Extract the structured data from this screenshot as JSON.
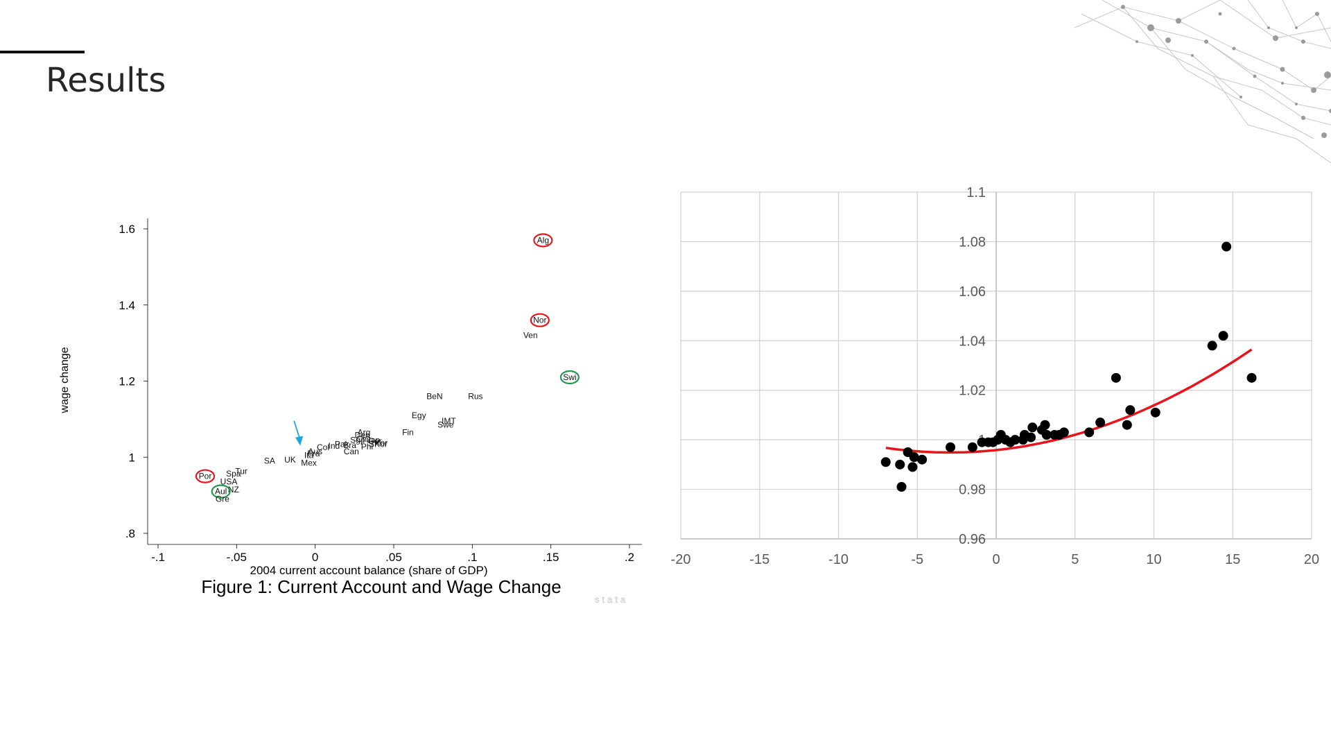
{
  "slide": {
    "title": "Results"
  },
  "chart_data": [
    {
      "type": "scatter",
      "title": "",
      "caption": "Figure 1: Current Account and Wage Change",
      "xlabel": "2004 current account balance (share of GDP)",
      "ylabel": "wage change",
      "watermark": "stata",
      "xlim": [
        -0.1,
        0.2
      ],
      "ylim": [
        0.8,
        1.6
      ],
      "xticks": [
        "-.1",
        "-.05",
        "0",
        ".05",
        ".1",
        ".15",
        ".2"
      ],
      "xtick_values": [
        -0.1,
        -0.05,
        0,
        0.05,
        0.1,
        0.15,
        0.2
      ],
      "yticks": [
        ".8",
        "1",
        "1.2",
        "1.4",
        "1.6"
      ],
      "ytick_values": [
        0.8,
        1.0,
        1.2,
        1.4,
        1.6
      ],
      "grid": false,
      "points": [
        {
          "label": "Alg",
          "x": 0.145,
          "y": 1.57,
          "highlight": "red"
        },
        {
          "label": "Nor",
          "x": 0.143,
          "y": 1.36,
          "highlight": "red"
        },
        {
          "label": "Ven",
          "x": 0.137,
          "y": 1.32
        },
        {
          "label": "Swi",
          "x": 0.162,
          "y": 1.21,
          "highlight": "green"
        },
        {
          "label": "BeN",
          "x": 0.076,
          "y": 1.16
        },
        {
          "label": "Rus",
          "x": 0.102,
          "y": 1.16
        },
        {
          "label": "Egy",
          "x": 0.066,
          "y": 1.11
        },
        {
          "label": "IMT",
          "x": 0.085,
          "y": 1.095
        },
        {
          "label": "Swe",
          "x": 0.083,
          "y": 1.085
        },
        {
          "label": "Fin",
          "x": 0.059,
          "y": 1.065
        },
        {
          "label": "Arg",
          "x": 0.031,
          "y": 1.065
        },
        {
          "label": "Den",
          "x": 0.03,
          "y": 1.058
        },
        {
          "label": "Chi",
          "x": 0.03,
          "y": 1.048
        },
        {
          "label": "Jap",
          "x": 0.037,
          "y": 1.045
        },
        {
          "label": "Ger",
          "x": 0.038,
          "y": 1.042
        },
        {
          "label": "Kor",
          "x": 0.042,
          "y": 1.038
        },
        {
          "label": "SKor",
          "x": 0.04,
          "y": 1.034
        },
        {
          "label": "Phi",
          "x": 0.033,
          "y": 1.028
        },
        {
          "label": "Bra",
          "x": 0.022,
          "y": 1.031
        },
        {
          "label": "Pak",
          "x": 0.017,
          "y": 1.034
        },
        {
          "label": "Ind",
          "x": 0.012,
          "y": 1.03
        },
        {
          "label": "Sgp",
          "x": 0.027,
          "y": 1.045
        },
        {
          "label": "Can",
          "x": 0.023,
          "y": 1.015
        },
        {
          "label": "Col",
          "x": 0.005,
          "y": 1.026
        },
        {
          "label": "Fra",
          "x": -0.001,
          "y": 1.01
        },
        {
          "label": "Aus",
          "x": 0.0,
          "y": 1.015
        },
        {
          "label": "Ita",
          "x": -0.004,
          "y": 1.005
        },
        {
          "label": "Mex",
          "x": -0.004,
          "y": 0.985
        },
        {
          "label": "UK",
          "x": -0.016,
          "y": 0.993
        },
        {
          "label": "SA",
          "x": -0.029,
          "y": 0.99
        },
        {
          "label": "Tur",
          "x": -0.047,
          "y": 0.963
        },
        {
          "label": "Spa",
          "x": -0.052,
          "y": 0.957
        },
        {
          "label": "USA",
          "x": -0.055,
          "y": 0.936
        },
        {
          "label": "Por",
          "x": -0.07,
          "y": 0.95,
          "highlight": "red"
        },
        {
          "label": "NZ",
          "x": -0.052,
          "y": 0.915
        },
        {
          "label": "Aul",
          "x": -0.06,
          "y": 0.91,
          "highlight": "green"
        },
        {
          "label": "Gre",
          "x": -0.059,
          "y": 0.89
        }
      ],
      "arrow": {
        "color": "#1aa7e0"
      }
    },
    {
      "type": "scatter",
      "title": "",
      "xlim": [
        -20,
        20
      ],
      "ylim": [
        0.96,
        1.1
      ],
      "xticks": [
        "-20",
        "-15",
        "-10",
        "-5",
        "0",
        "5",
        "10",
        "15",
        "20"
      ],
      "xtick_values": [
        -20,
        -15,
        -10,
        -5,
        0,
        5,
        10,
        15,
        20
      ],
      "yticks": [
        "0.96",
        "0.98",
        "1",
        "1.02",
        "1.04",
        "1.06",
        "1.08",
        "1.1"
      ],
      "ytick_values": [
        0.96,
        0.98,
        1.0,
        1.02,
        1.04,
        1.06,
        1.08,
        1.1
      ],
      "grid": true,
      "points": [
        [
          -7.0,
          0.991
        ],
        [
          -6.1,
          0.99
        ],
        [
          -6.0,
          0.981
        ],
        [
          -5.6,
          0.995
        ],
        [
          -5.3,
          0.989
        ],
        [
          -5.2,
          0.993
        ],
        [
          -4.7,
          0.992
        ],
        [
          -2.9,
          0.997
        ],
        [
          -1.5,
          0.997
        ],
        [
          -0.9,
          0.999
        ],
        [
          -0.5,
          0.999
        ],
        [
          -0.2,
          0.999
        ],
        [
          0.1,
          1.0
        ],
        [
          0.3,
          1.002
        ],
        [
          0.6,
          1.0
        ],
        [
          0.9,
          0.999
        ],
        [
          1.2,
          1.0
        ],
        [
          1.7,
          1.0
        ],
        [
          1.8,
          1.002
        ],
        [
          2.2,
          1.001
        ],
        [
          2.3,
          1.005
        ],
        [
          2.9,
          1.004
        ],
        [
          3.1,
          1.006
        ],
        [
          3.2,
          1.002
        ],
        [
          3.7,
          1.002
        ],
        [
          4.0,
          1.002
        ],
        [
          4.3,
          1.003
        ],
        [
          5.9,
          1.003
        ],
        [
          6.6,
          1.007
        ],
        [
          7.6,
          1.025
        ],
        [
          8.3,
          1.006
        ],
        [
          8.5,
          1.012
        ],
        [
          10.1,
          1.011
        ],
        [
          13.7,
          1.038
        ],
        [
          14.4,
          1.042
        ],
        [
          14.6,
          1.078
        ],
        [
          16.2,
          1.025
        ]
      ],
      "point_color": "#000000",
      "trendline": {
        "type": "polynomial",
        "color": "#e8141b",
        "x_range": [
          -7.0,
          16.2
        ],
        "coef": [
          0.99585,
          0.000667,
          0.0001136
        ]
      }
    }
  ]
}
